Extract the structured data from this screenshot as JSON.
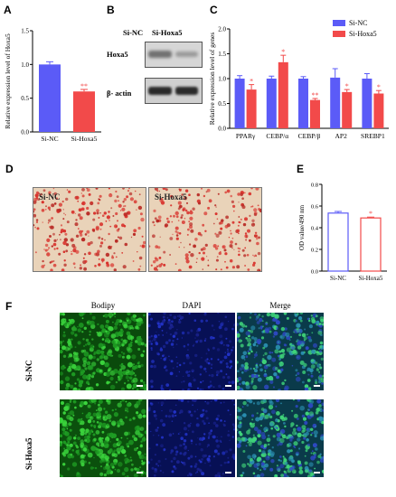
{
  "panels": {
    "a": "A",
    "b": "B",
    "c": "C",
    "d": "D",
    "e": "E",
    "f": "F"
  },
  "chart_data": [
    {
      "type": "bar",
      "panel": "A",
      "categories": [
        "Si-NC",
        "Si-Hoxa5"
      ],
      "values": [
        1.0,
        0.6
      ],
      "errors": [
        0.04,
        0.03
      ],
      "significance": [
        "",
        "**"
      ],
      "ylabel": "Relative expression level of Hoxa5",
      "ylim": [
        0,
        1.5
      ],
      "yticks": [
        "0.0",
        "0.5",
        "1.0",
        "1.5"
      ],
      "colors": [
        "#5b5bf7",
        "#f24a4a"
      ]
    },
    {
      "type": "bar",
      "panel": "C",
      "categories": [
        "PPARγ",
        "CEBP/α",
        "CEBP/β",
        "AP2",
        "SREBP1"
      ],
      "series": [
        {
          "name": "Si-NC",
          "values": [
            1.0,
            1.0,
            1.0,
            1.02,
            1.0
          ],
          "errors": [
            0.06,
            0.05,
            0.04,
            0.18,
            0.1
          ],
          "color": "#5b5bf7"
        },
        {
          "name": "Si-Hoxa5",
          "values": [
            0.78,
            1.33,
            0.57,
            0.73,
            0.7
          ],
          "errors": [
            0.1,
            0.14,
            0.03,
            0.05,
            0.06
          ],
          "color": "#f24a4a"
        }
      ],
      "significance": [
        "*",
        "*",
        "**",
        "*",
        "*"
      ],
      "ylabel": "Relative expression level of genes",
      "ylim": [
        0,
        2.0
      ],
      "yticks": [
        "0.0",
        "0.5",
        "1.0",
        "1.5",
        "2.0"
      ],
      "legend": "top-right"
    },
    {
      "type": "bar",
      "panel": "E",
      "categories": [
        "Si-NC",
        "Si-Hoxa5"
      ],
      "values": [
        0.535,
        0.49
      ],
      "errors": [
        0.015,
        0.008
      ],
      "significance": [
        "",
        "*"
      ],
      "ylabel": "OD value/490 nm",
      "ylim": [
        0,
        0.8
      ],
      "yticks": [
        "0.0",
        "0.2",
        "0.4",
        "0.6",
        "0.8"
      ],
      "style": "outline",
      "colors": [
        "#5b5bf7",
        "#f24a4a"
      ]
    }
  ],
  "western_blot": {
    "lanes": [
      "Si-NC",
      "Si-Hoxa5"
    ],
    "rows": [
      "Hoxa5",
      "β- actin"
    ]
  },
  "oil_red": {
    "left_label": "Si-NC",
    "right_label": "Si-Hoxa5"
  },
  "fluorescence": {
    "columns": [
      "Bodipy",
      "DAPI",
      "Merge"
    ],
    "rows": [
      "Si-NC",
      "Si-Hoxa5"
    ]
  }
}
